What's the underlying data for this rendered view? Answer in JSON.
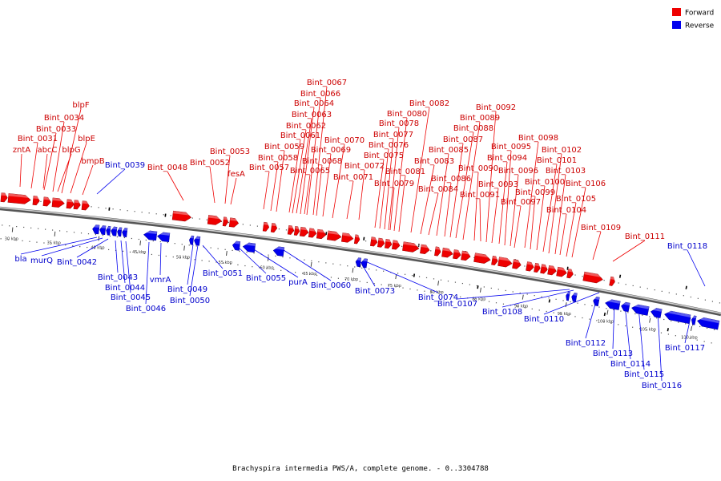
{
  "legend": [
    {
      "label": "Forward",
      "color": "#ee0000"
    },
    {
      "label": "Reverse",
      "color": "#0000ee"
    }
  ],
  "colors": {
    "forward": "#ee0000",
    "reverse": "#0000ee",
    "backbone": "#888888"
  },
  "ticks": [
    {
      "label": "30 kbp",
      "ref": "backbone"
    },
    {
      "label": "35 kbp"
    },
    {
      "label": "40 kbp"
    },
    {
      "label": "45 kbp"
    },
    {
      "label": "50 kbp"
    },
    {
      "label": "55 kbp"
    },
    {
      "label": "60 kbp"
    },
    {
      "label": "65 kbp"
    },
    {
      "label": "70 kbp"
    },
    {
      "label": "75 kbp"
    },
    {
      "label": "80 kbp"
    },
    {
      "label": "85 kbp"
    },
    {
      "label": "90 kbp"
    },
    {
      "label": "95 kbp"
    },
    {
      "label": "100 kbp"
    },
    {
      "label": "105 kbp"
    },
    {
      "label": "110 kbp"
    }
  ],
  "forward_labels": [
    "zntA",
    "Bint_0031",
    "Bint_0033",
    "Bint_0034",
    "abcC",
    "blpF",
    "blpG",
    "blpE",
    "bmpB",
    "Bint_0048",
    "Bint_0052",
    "Bint_0053",
    "fesA",
    "Bint_0057",
    "Bint_0058",
    "Bint_0059",
    "Bint_0061",
    "Bint_0062",
    "Bint_0063",
    "Bint_0064",
    "Bint_0065",
    "Bint_0066",
    "Bint_0067",
    "Bint_0068",
    "Bint_0069",
    "Bint_0070",
    "Bint_0071",
    "Bint_0072",
    "Bint_0075",
    "Bint_0076",
    "Bint_0077",
    "Bint_0078",
    "Bint_0079",
    "Bint_0080",
    "Bint_0081",
    "Bint_0082",
    "Bint_0083",
    "Bint_0084",
    "Bint_0085",
    "Bint_0086",
    "Bint_0087",
    "Bint_0088",
    "Bint_0089",
    "Bint_0090",
    "Bint_0091",
    "Bint_0092",
    "Bint_0093",
    "Bint_0094",
    "Bint_0095",
    "Bint_0096",
    "Bint_0097",
    "Bint_0098",
    "Bint_0099",
    "Bint_0100",
    "Bint_0101",
    "Bint_0102",
    "Bint_0103",
    "Bint_0104",
    "Bint_0105",
    "Bint_0106",
    "Bint_0109",
    "Bint_0111"
  ],
  "reverse_labels": [
    "Bint_0039",
    "bla",
    "murQ",
    "Bint_0042",
    "Bint_0043",
    "Bint_0044",
    "Bint_0045",
    "Bint_0046",
    "vmrA",
    "Bint_0049",
    "Bint_0050",
    "Bint_0051",
    "Bint_0055",
    "purA",
    "Bint_0060",
    "Bint_0073",
    "Bint_0074",
    "Bint_0107",
    "Bint_0108",
    "Bint_0110",
    "Bint_0112",
    "Bint_0113",
    "Bint_0114",
    "Bint_0115",
    "Bint_0116",
    "Bint_0117",
    "Bint_0118"
  ],
  "caption": "Brachyspira intermedia PWS/A, complete genome. - 0..3304788"
}
